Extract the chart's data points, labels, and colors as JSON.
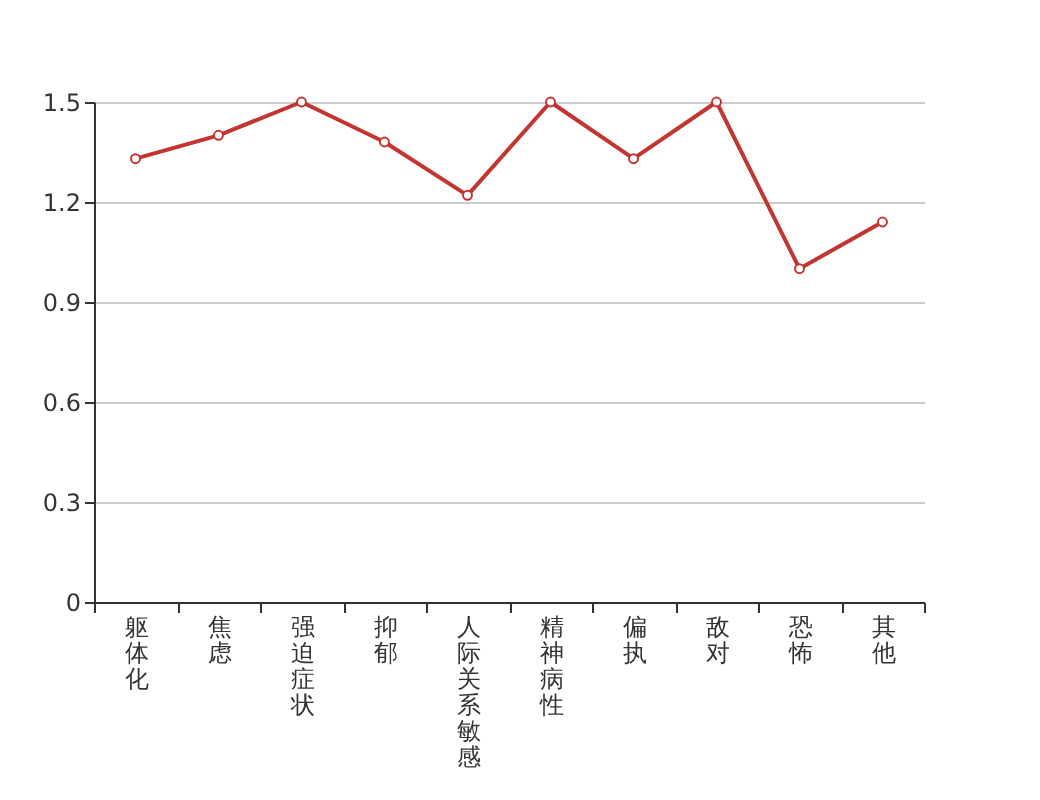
{
  "chart_data": {
    "type": "line",
    "categories": [
      "躯体化",
      "焦虑",
      "强迫症状",
      "抑郁",
      "人际关系敏感",
      "精神病性",
      "偏执",
      "敌对",
      "恐怖",
      "其他"
    ],
    "series": [
      {
        "color": "#c23531",
        "values": [
          1.33,
          1.4,
          1.5,
          1.38,
          1.22,
          1.5,
          1.33,
          1.5,
          1.0,
          1.14
        ]
      }
    ],
    "ylim": [
      0,
      1.5
    ],
    "yticks": [
      0,
      0.3,
      0.6,
      0.9,
      1.2,
      1.5
    ],
    "grid": "y",
    "marker": "circle",
    "line_style": "solid"
  }
}
